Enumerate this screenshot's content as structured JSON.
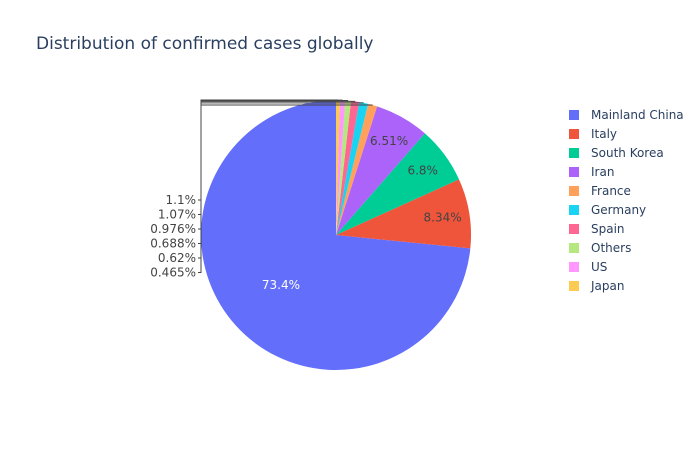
{
  "chart_data": {
    "type": "pie",
    "title": "Distribution of confirmed cases globally",
    "labels": [
      "Mainland China",
      "Italy",
      "South Korea",
      "Iran",
      "France",
      "Germany",
      "Spain",
      "Others",
      "US",
      "Japan"
    ],
    "values": [
      73.4,
      8.34,
      6.8,
      6.51,
      1.1,
      1.07,
      0.976,
      0.688,
      0.62,
      0.465
    ],
    "text_labels": [
      "73.4%",
      "8.34%",
      "6.8%",
      "6.51%",
      "1.1%",
      "1.07%",
      "0.976%",
      "0.688%",
      "0.62%",
      "0.465%"
    ],
    "colors": [
      "#636efa",
      "#EF553B",
      "#00cc96",
      "#ab63fa",
      "#FFA15A",
      "#19d3f3",
      "#FF6692",
      "#B6E880",
      "#FF97FF",
      "#FECB52"
    ],
    "legend": "right"
  }
}
